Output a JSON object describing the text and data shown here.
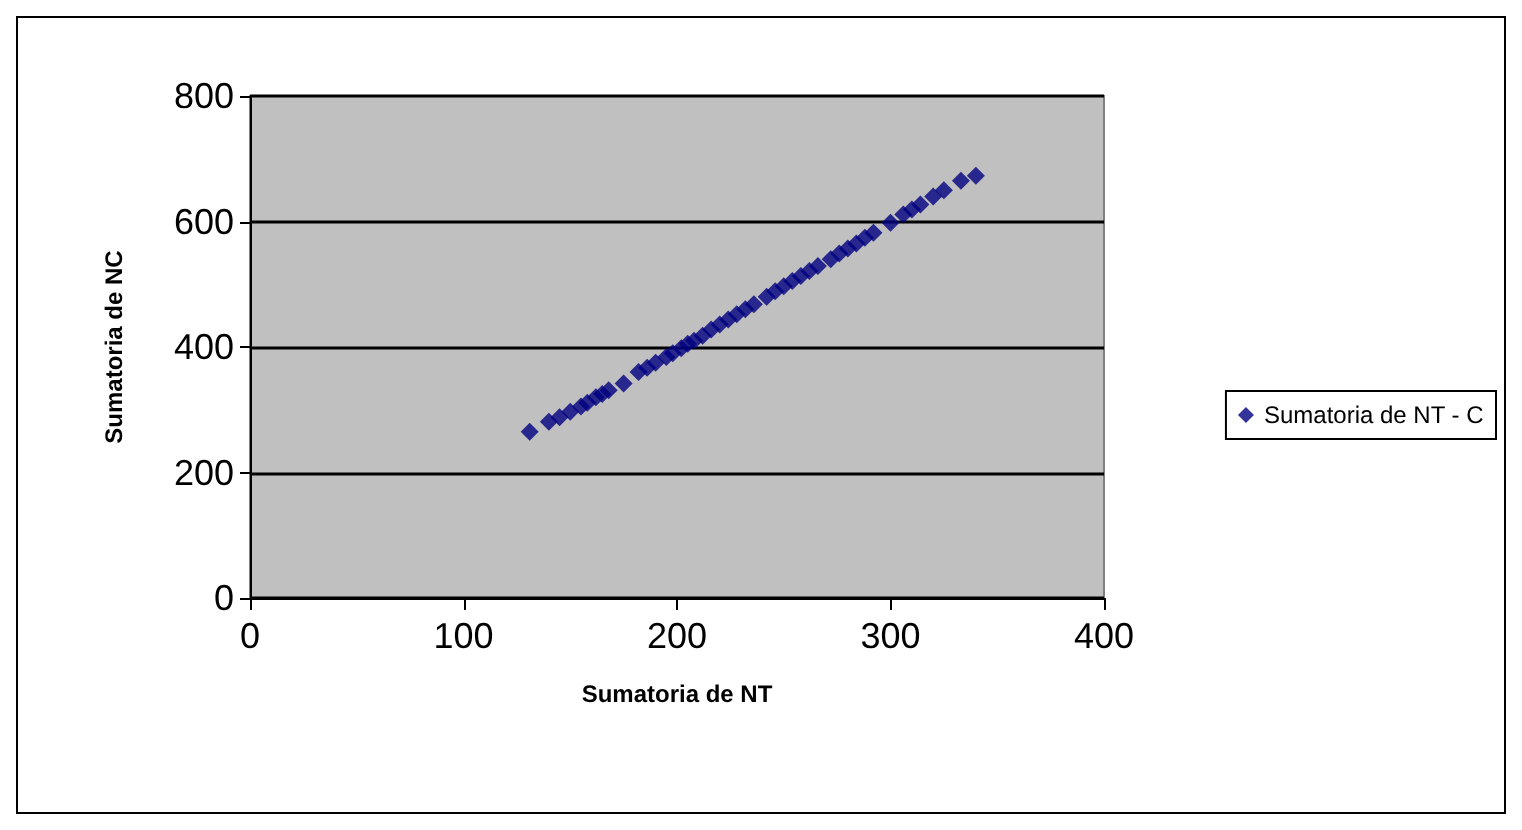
{
  "chart_data": {
    "type": "scatter",
    "xlabel": "Sumatoria de NT",
    "ylabel": "Sumatoria de NC",
    "xlim": [
      0,
      400
    ],
    "xticks": [
      0,
      100,
      200,
      300,
      400
    ],
    "ylim": [
      0,
      800
    ],
    "yticks": [
      0,
      200,
      400,
      600,
      800
    ],
    "grid": "y",
    "legend": "right",
    "marker": "diamond",
    "series": [
      {
        "name": "Sumatoria de NT - C",
        "color": "#000080",
        "x": [
          131,
          140,
          145,
          150,
          155,
          158,
          162,
          165,
          168,
          175,
          182,
          186,
          190,
          195,
          198,
          202,
          205,
          208,
          212,
          216,
          220,
          224,
          228,
          232,
          236,
          242,
          246,
          250,
          254,
          258,
          262,
          266,
          272,
          276,
          280,
          284,
          288,
          292,
          300,
          306,
          310,
          314,
          320,
          325,
          333,
          340
        ],
        "values": [
          265,
          281,
          288,
          297,
          305,
          311,
          320,
          325,
          331,
          342,
          360,
          367,
          375,
          384,
          390,
          398,
          405,
          410,
          418,
          428,
          436,
          444,
          452,
          460,
          468,
          480,
          489,
          497,
          505,
          513,
          521,
          529,
          540,
          549,
          557,
          565,
          574,
          582,
          598,
          611,
          619,
          627,
          640,
          650,
          665,
          673
        ]
      }
    ]
  }
}
